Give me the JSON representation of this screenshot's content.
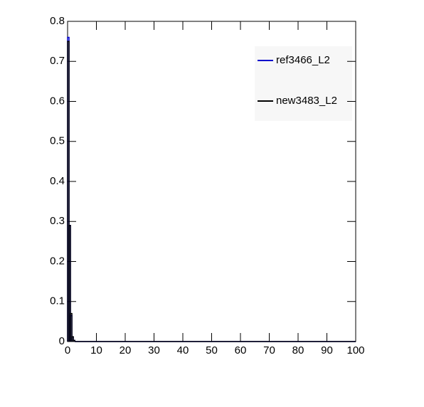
{
  "chart_data": {
    "type": "histogram",
    "bins": [
      0,
      0.5,
      1,
      1.5,
      2,
      2.5,
      100
    ],
    "series": [
      {
        "name": "ref3466_L2",
        "color": "#0000cc",
        "values": [
          0.76,
          0.29,
          0.065,
          0.012,
          0.003,
          0
        ]
      },
      {
        "name": "new3483_L2",
        "color": "#000000",
        "values": [
          0.75,
          0.29,
          0.07,
          0.012,
          0.003,
          0
        ]
      }
    ],
    "xlim": [
      0,
      100
    ],
    "xticks": [
      0,
      10,
      20,
      30,
      40,
      50,
      60,
      70,
      80,
      90,
      100
    ],
    "ylim": [
      0,
      0.8
    ],
    "yticks": [
      0,
      0.1,
      0.2,
      0.3,
      0.4,
      0.5,
      0.6,
      0.7,
      0.8
    ],
    "legend": "top-right"
  }
}
